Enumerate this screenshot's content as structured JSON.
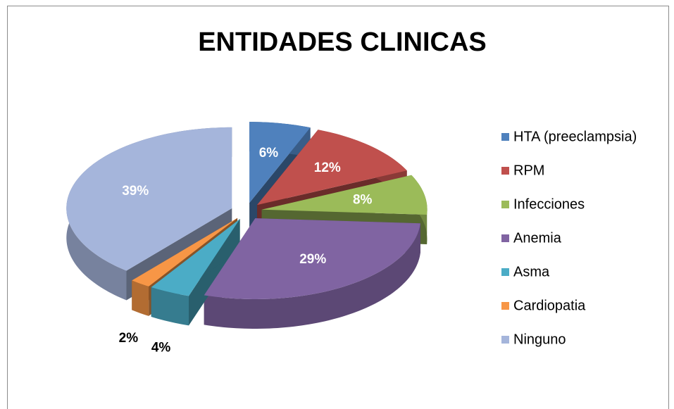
{
  "chart_data": {
    "type": "pie",
    "title": "ENTIDADES CLINICAS",
    "categories": [
      "HTA (preeclampsia)",
      "RPM",
      "Infecciones",
      "Anemia",
      "Asma",
      "Cardiopatia",
      "Ninguno"
    ],
    "values": [
      6,
      12,
      8,
      29,
      4,
      2,
      39
    ],
    "value_labels": [
      "6%",
      "12%",
      "8%",
      "29%",
      "4%",
      "2%",
      "39%"
    ],
    "colors": [
      "#4f81bd",
      "#c0504d",
      "#9bbb59",
      "#8064a2",
      "#4bacc6",
      "#f79646",
      "#a5b5db"
    ],
    "legend": "right"
  }
}
